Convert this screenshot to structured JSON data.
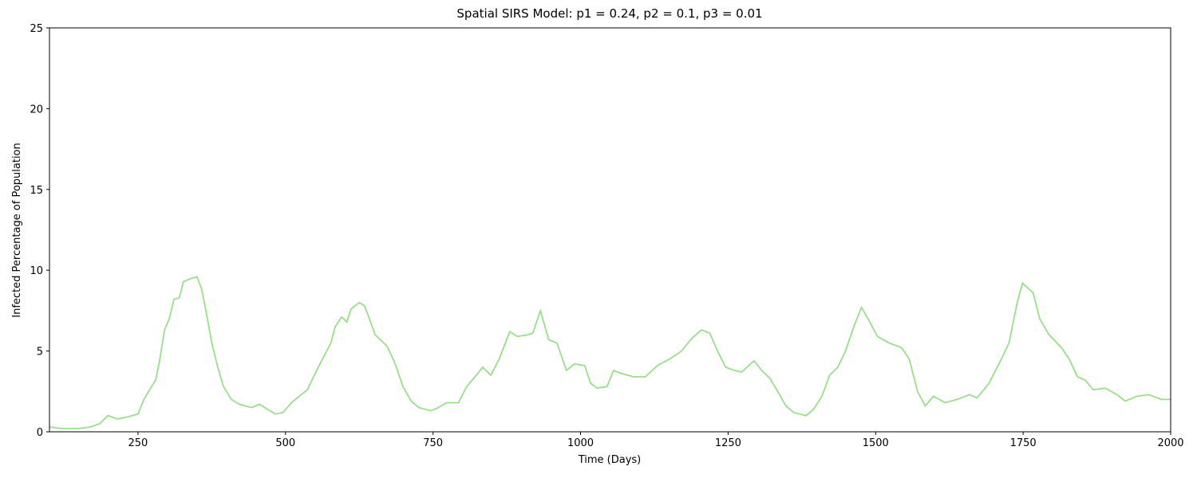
{
  "chart_data": {
    "type": "line",
    "title": "Spatial SIRS Model: p1 = 0.24, p2 = 0.1, p3 = 0.01",
    "x_label": "Time (Days)",
    "y_label": "Infected Percentage of Population",
    "xlim": [
      100,
      2000
    ],
    "ylim": [
      0,
      25
    ],
    "xticks": [
      250,
      500,
      750,
      1000,
      1250,
      1500,
      1750,
      2000
    ],
    "yticks": [
      0,
      5,
      10,
      15,
      20,
      25
    ],
    "grid": false,
    "series": [
      {
        "name": "Infected",
        "color": "#98df8a",
        "x": [
          100,
          120,
          150,
          170,
          185,
          199,
          215,
          230,
          250,
          260,
          273,
          280,
          287,
          295,
          303,
          311,
          320,
          327,
          341,
          350,
          358,
          365,
          375,
          385,
          395,
          408,
          422,
          442,
          456,
          469,
          483,
          496,
          510,
          523,
          537,
          550,
          564,
          577,
          584,
          595,
          604,
          611,
          625,
          634,
          642,
          652,
          672,
          686,
          699,
          713,
          726,
          746,
          759,
          773,
          793,
          807,
          821,
          834,
          848,
          862,
          880,
          893,
          911,
          919,
          932,
          946,
          960,
          976,
          990,
          1007,
          1017,
          1028,
          1045,
          1056,
          1070,
          1090,
          1110,
          1130,
          1151,
          1171,
          1189,
          1205,
          1219,
          1232,
          1246,
          1260,
          1273,
          1294,
          1307,
          1321,
          1334,
          1348,
          1361,
          1382,
          1395,
          1409,
          1422,
          1436,
          1449,
          1463,
          1476,
          1490,
          1503,
          1523,
          1544,
          1557,
          1571,
          1584,
          1598,
          1618,
          1638,
          1659,
          1672,
          1692,
          1713,
          1726,
          1740,
          1749,
          1767,
          1778,
          1794,
          1815,
          1828,
          1842,
          1855,
          1869,
          1889,
          1909,
          1923,
          1943,
          1963,
          1984,
          2000
        ],
        "values": [
          0.3,
          0.2,
          0.2,
          0.3,
          0.5,
          1.0,
          0.8,
          0.9,
          1.1,
          2.0,
          2.8,
          3.2,
          4.5,
          6.3,
          7.0,
          8.2,
          8.3,
          9.3,
          9.5,
          9.6,
          8.8,
          7.5,
          5.5,
          4.0,
          2.8,
          2.0,
          1.7,
          1.5,
          1.7,
          1.4,
          1.1,
          1.2,
          1.8,
          2.2,
          2.6,
          3.6,
          4.6,
          5.5,
          6.5,
          7.1,
          6.8,
          7.6,
          8.0,
          7.8,
          7.0,
          6.0,
          5.3,
          4.2,
          2.8,
          1.9,
          1.5,
          1.3,
          1.5,
          1.8,
          1.8,
          2.8,
          3.4,
          4.0,
          3.5,
          4.5,
          6.2,
          5.9,
          6.0,
          6.1,
          7.5,
          5.7,
          5.5,
          3.8,
          4.2,
          4.1,
          3.0,
          2.7,
          2.8,
          3.8,
          3.6,
          3.4,
          3.4,
          4.1,
          4.5,
          5.0,
          5.8,
          6.3,
          6.1,
          5.0,
          4.0,
          3.8,
          3.7,
          4.4,
          3.8,
          3.3,
          2.5,
          1.6,
          1.2,
          1.0,
          1.4,
          2.2,
          3.5,
          4.0,
          5.0,
          6.5,
          7.7,
          6.8,
          5.9,
          5.5,
          5.2,
          4.5,
          2.5,
          1.6,
          2.2,
          1.8,
          2.0,
          2.3,
          2.1,
          3.0,
          4.5,
          5.5,
          8.0,
          9.2,
          8.6,
          7.0,
          6.0,
          5.2,
          4.5,
          3.4,
          3.2,
          2.6,
          2.7,
          2.3,
          1.9,
          2.2,
          2.3,
          2.0,
          2.0
        ]
      }
    ]
  }
}
